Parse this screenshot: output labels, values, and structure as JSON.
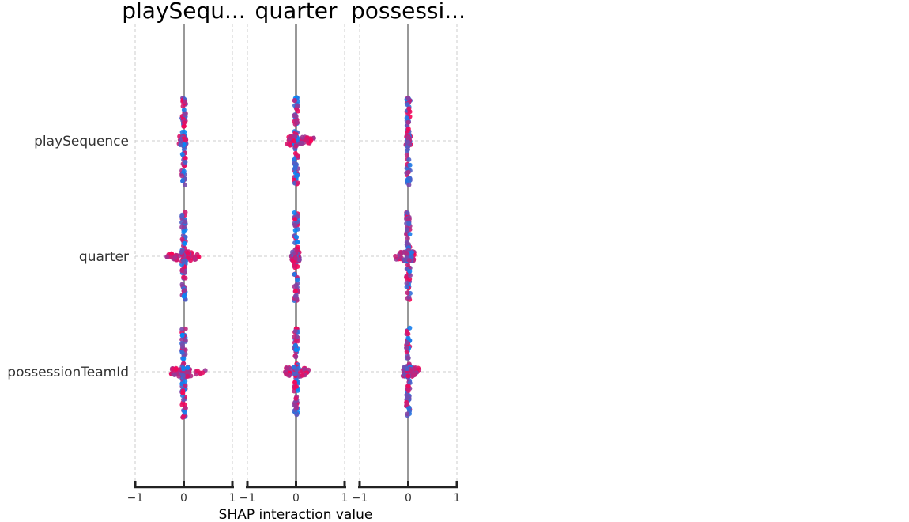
{
  "chart_data": {
    "type": "scatter",
    "subtype": "shap-interaction-summary-grid",
    "xlabel": "SHAP interaction value",
    "xlim": [
      -1,
      1
    ],
    "xticks": [
      {
        "value": -1,
        "label": "−1"
      },
      {
        "value": 0,
        "label": "0"
      },
      {
        "value": 1,
        "label": "1"
      }
    ],
    "grid": true,
    "features": [
      "playSequence",
      "quarter",
      "possessionTeamId"
    ],
    "panels": [
      {
        "title": "playSequ...",
        "feature": "playSequence"
      },
      {
        "title": "quarter",
        "feature": "quarter"
      },
      {
        "title": "possessi...",
        "feature": "possessionTeamId"
      }
    ],
    "color_low": "#008afb",
    "color_high": "#ff0052",
    "cells": [
      {
        "panel": 0,
        "row": 0,
        "spread_min": -0.1,
        "spread_max": 0.05,
        "vert_up": 1.0,
        "vert_down": 1.0
      },
      {
        "panel": 0,
        "row": 1,
        "spread_min": -0.38,
        "spread_max": 0.33,
        "vert_up": 1.0,
        "vert_down": 1.0
      },
      {
        "panel": 0,
        "row": 2,
        "spread_min": -0.3,
        "spread_max": 0.47,
        "vert_up": 1.0,
        "vert_down": 1.05
      },
      {
        "panel": 1,
        "row": 0,
        "spread_min": -0.18,
        "spread_max": 0.39,
        "vert_up": 1.0,
        "vert_down": 1.0
      },
      {
        "panel": 1,
        "row": 1,
        "spread_min": -0.1,
        "spread_max": 0.08,
        "vert_up": 1.0,
        "vert_down": 1.0
      },
      {
        "panel": 1,
        "row": 2,
        "spread_min": -0.22,
        "spread_max": 0.26,
        "vert_up": 1.0,
        "vert_down": 1.0
      },
      {
        "panel": 2,
        "row": 0,
        "spread_min": -0.05,
        "spread_max": 0.05,
        "vert_up": 1.0,
        "vert_down": 1.0
      },
      {
        "panel": 2,
        "row": 1,
        "spread_min": -0.28,
        "spread_max": 0.12,
        "vert_up": 1.0,
        "vert_down": 1.0
      },
      {
        "panel": 2,
        "row": 2,
        "spread_min": -0.12,
        "spread_max": 0.24,
        "vert_up": 1.0,
        "vert_down": 1.0
      }
    ]
  }
}
